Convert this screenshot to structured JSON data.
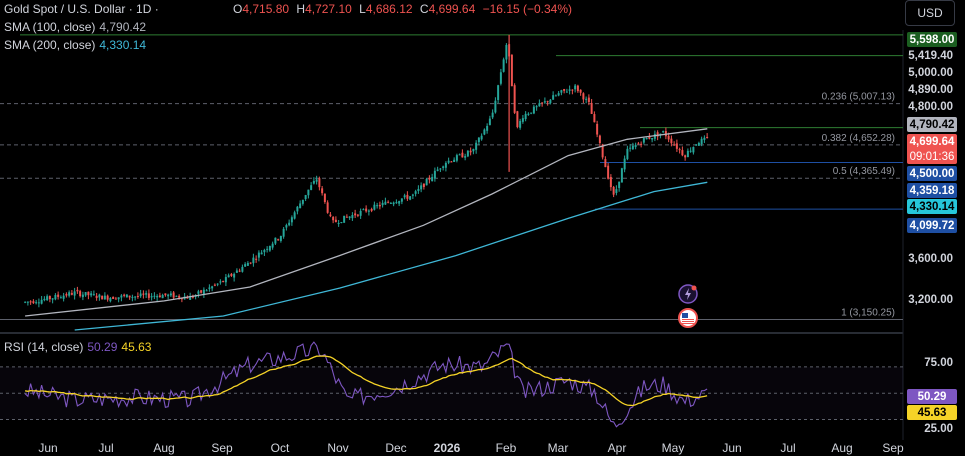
{
  "header": {
    "symbol": "Gold Spot / U.S. Dollar · 1D ·",
    "ohlc": {
      "o_label": "O",
      "o": "4,715.80",
      "h_label": "H",
      "h": "4,727.10",
      "l_label": "L",
      "l": "4,686.12",
      "c_label": "C",
      "c": "4,699.64",
      "chg": "−16.15 (−0.34%)"
    },
    "sma100_label": "SMA (100, close)",
    "sma100_value": "4,790.42",
    "sma200_label": "SMA (200, close)",
    "sma200_value": "4,330.14",
    "currency_button": "USD"
  },
  "price_scale": {
    "ticks": [
      "5,419.40",
      "5,000.00",
      "4,890.00",
      "4,800.00",
      "3,600.00",
      "3,200.00"
    ],
    "tags": {
      "level_5598": "5,598.00",
      "sma100": "4,790.42",
      "last_price": "4,699.64",
      "countdown": "09:01:36",
      "level_4500": "4,500.00",
      "level_4359": "4,359.18",
      "sma200": "4,330.14",
      "level_4099": "4,099.72"
    }
  },
  "fib_labels": [
    "0.236 (5,007.13)",
    "0.382 (4,652.28)",
    "0.5 (4,365.49)",
    "1 (3,150.25)"
  ],
  "rsi": {
    "label": "RSI (14, close)",
    "value": "50.29",
    "ma_value": "45.63",
    "ticks": [
      "75.00",
      "25.00"
    ]
  },
  "x_axis": [
    "Jun",
    "Jul",
    "Aug",
    "Sep",
    "Oct",
    "Nov",
    "Dec",
    "2026",
    "Feb",
    "Mar",
    "Apr",
    "May",
    "Jun",
    "Jul",
    "Aug",
    "Sep"
  ],
  "colors": {
    "up": "#26a69a",
    "down": "#ef5350",
    "sma100": "#b2b5be",
    "sma200": "#3fb7d6",
    "rsi": "#7e57c2",
    "rsi_ma": "#f5d327",
    "levels": "#2e7d32"
  },
  "icons": [
    "lightning-event-icon",
    "us-flag-event-icon"
  ],
  "chart_data": {
    "type": "candlestick",
    "title": "Gold Spot / U.S. Dollar · 1D",
    "months": [
      "Jun",
      "Jul",
      "Aug",
      "Sep",
      "Oct",
      "Nov",
      "Dec",
      "2026",
      "Feb",
      "Mar",
      "Apr",
      "May",
      "Jun",
      "Jul",
      "Aug",
      "Sep"
    ],
    "close_path": [
      [
        "2025-05-20",
        3300
      ],
      [
        "2025-06-01",
        3330
      ],
      [
        "2025-06-15",
        3380
      ],
      [
        "2025-07-01",
        3340
      ],
      [
        "2025-07-15",
        3350
      ],
      [
        "2025-08-01",
        3360
      ],
      [
        "2025-08-15",
        3340
      ],
      [
        "2025-09-01",
        3480
      ],
      [
        "2025-09-15",
        3650
      ],
      [
        "2025-10-01",
        3870
      ],
      [
        "2025-10-15",
        4250
      ],
      [
        "2025-10-20",
        4360
      ],
      [
        "2025-10-28",
        3980
      ],
      [
        "2025-11-10",
        4060
      ],
      [
        "2025-11-25",
        4150
      ],
      [
        "2025-12-10",
        4220
      ],
      [
        "2025-12-26",
        4500
      ],
      [
        "2026-01-10",
        4600
      ],
      [
        "2026-01-20",
        4900
      ],
      [
        "2026-01-28",
        5550
      ],
      [
        "2026-02-02",
        4780
      ],
      [
        "2026-02-05",
        4900
      ],
      [
        "2026-02-15",
        5000
      ],
      [
        "2026-02-25",
        5100
      ],
      [
        "2026-03-05",
        5150
      ],
      [
        "2026-03-12",
        5000
      ],
      [
        "2026-03-20",
        4500
      ],
      [
        "2026-03-25",
        4200
      ],
      [
        "2026-04-01",
        4600
      ],
      [
        "2026-04-10",
        4700
      ],
      [
        "2026-04-20",
        4760
      ],
      [
        "2026-05-01",
        4560
      ],
      [
        "2026-05-08",
        4680
      ],
      [
        "2026-05-13",
        4700
      ]
    ],
    "last": {
      "open": 4715.8,
      "high": 4727.1,
      "low": 4686.12,
      "close": 4699.64,
      "change": -16.15,
      "change_pct": -0.34
    },
    "sma100": 4790.42,
    "sma200": 4330.14,
    "horizontal_levels": [
      5598.0,
      5419.4,
      4800.0,
      4500.0,
      4099.72
    ],
    "fibonacci": [
      {
        "ratio": 0.236,
        "price": 5007.13
      },
      {
        "ratio": 0.382,
        "price": 4652.28
      },
      {
        "ratio": 0.5,
        "price": 4365.49
      },
      {
        "ratio": 1,
        "price": 3150.25
      }
    ],
    "y_range": [
      3060,
      5640
    ],
    "rsi": {
      "length": 14,
      "value": 50.29,
      "ma": 45.63,
      "levels": [
        70,
        50,
        30
      ],
      "ylim": [
        22,
        92
      ],
      "path": [
        [
          "2025-05-20",
          52
        ],
        [
          "2025-06-15",
          45
        ],
        [
          "2025-07-15",
          47
        ],
        [
          "2025-08-15",
          45
        ],
        [
          "2025-09-15",
          72
        ],
        [
          "2025-10-15",
          82
        ],
        [
          "2025-10-22",
          84
        ],
        [
          "2025-11-05",
          45
        ],
        [
          "2025-12-01",
          55
        ],
        [
          "2025-12-26",
          72
        ],
        [
          "2026-01-15",
          70
        ],
        [
          "2026-01-28",
          86
        ],
        [
          "2026-02-05",
          50
        ],
        [
          "2026-03-01",
          60
        ],
        [
          "2026-03-15",
          52
        ],
        [
          "2026-03-25",
          25
        ],
        [
          "2026-04-10",
          55
        ],
        [
          "2026-04-20",
          57
        ],
        [
          "2026-05-01",
          44
        ],
        [
          "2026-05-13",
          50
        ]
      ]
    }
  }
}
